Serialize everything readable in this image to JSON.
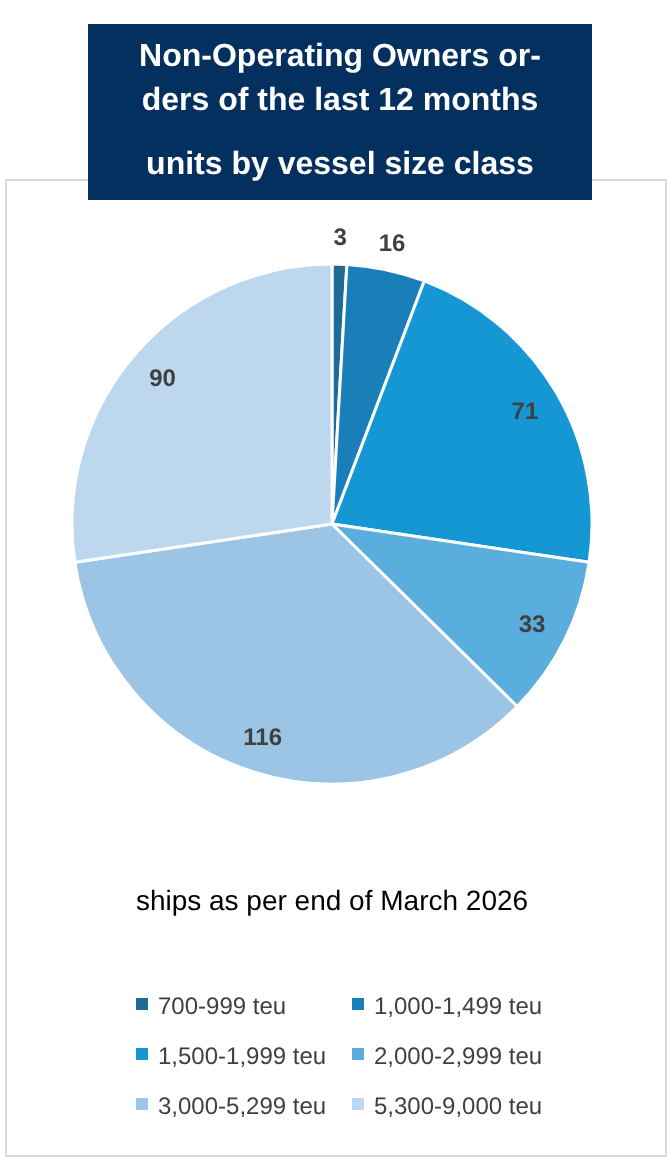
{
  "chart_data": {
    "type": "pie",
    "title": "Non-Operating Owners or-ders of the last 12 months",
    "subtitle": "units by vessel size class",
    "annotations": [
      "ships as per end of March 2026"
    ],
    "categories": [
      "700-999 teu",
      "1,000-1,499 teu",
      "1,500-1,999 teu",
      "2,000-2,999 teu",
      "3,000-5,299 teu",
      "5,300-9,000 teu"
    ],
    "values": [
      3,
      16,
      71,
      33,
      116,
      90
    ],
    "colors": [
      "#1f6b98",
      "#1a7fb8",
      "#1497d2",
      "#5aaede",
      "#9cc5e5",
      "#bdd8ee"
    ],
    "data_labels": true,
    "legend": "bottom"
  }
}
